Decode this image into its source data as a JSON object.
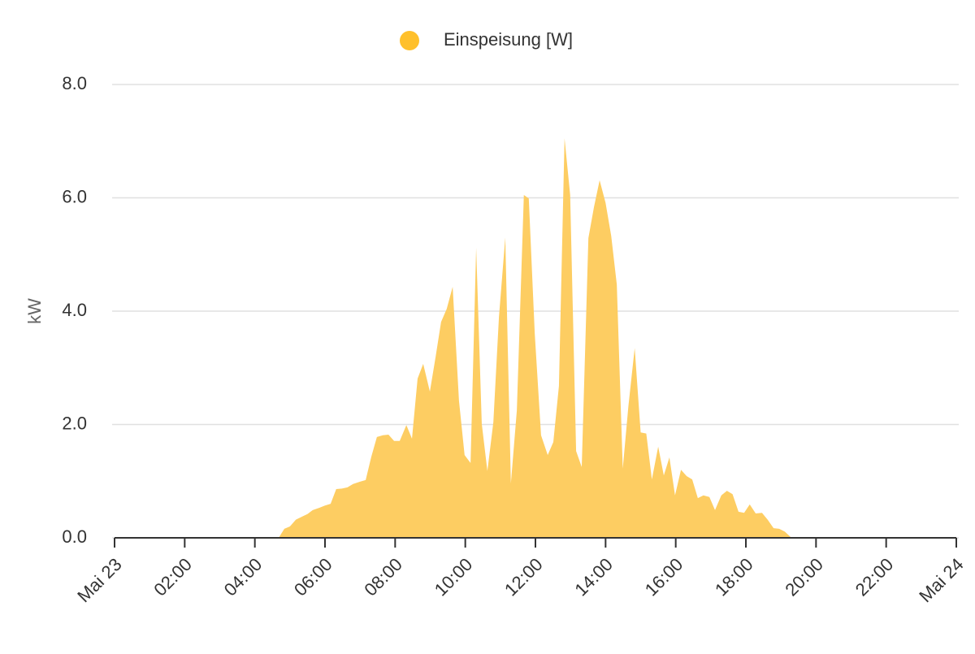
{
  "chart_data": {
    "type": "area",
    "ylabel": "kW",
    "x": [
      0,
      4.68,
      4.84,
      5.0,
      5.17,
      5.33,
      5.5,
      5.65,
      5.84,
      6.0,
      6.16,
      6.32,
      6.48,
      6.64,
      6.8,
      6.99,
      7.16,
      7.32,
      7.48,
      7.65,
      7.81,
      7.97,
      8.13,
      8.32,
      8.48,
      8.64,
      8.8,
      8.99,
      9.15,
      9.31,
      9.47,
      9.64,
      9.82,
      9.98,
      10.15,
      10.31,
      10.47,
      10.63,
      10.8,
      10.96,
      11.14,
      11.3,
      11.47,
      11.67,
      11.81,
      11.98,
      12.16,
      12.35,
      12.51,
      12.67,
      12.83,
      12.99,
      13.16,
      13.32,
      13.51,
      13.67,
      13.83,
      14.0,
      14.16,
      14.32,
      14.49,
      14.65,
      14.83,
      15.0,
      15.16,
      15.32,
      15.5,
      15.66,
      15.82,
      15.98,
      16.15,
      16.31,
      16.47,
      16.63,
      16.79,
      16.96,
      17.12,
      17.3,
      17.46,
      17.62,
      17.79,
      17.95,
      18.11,
      18.28,
      18.46,
      18.62,
      18.79,
      18.95,
      19.11,
      19.3,
      24
    ],
    "series": [
      {
        "name": "Einspeisung [W]",
        "color": "#fdcd62",
        "legend_color": "#ffc02b",
        "values": [
          0,
          0,
          0.16,
          0.2,
          0.32,
          0.37,
          0.42,
          0.49,
          0.53,
          0.57,
          0.6,
          0.86,
          0.87,
          0.89,
          0.95,
          0.99,
          1.02,
          1.43,
          1.78,
          1.81,
          1.82,
          1.71,
          1.71,
          1.99,
          1.75,
          2.81,
          3.07,
          2.58,
          3.18,
          3.81,
          4.04,
          4.43,
          2.42,
          1.46,
          1.32,
          5.12,
          2.01,
          1.18,
          2.04,
          3.9,
          5.3,
          0.96,
          2.25,
          6.05,
          5.99,
          3.61,
          1.81,
          1.46,
          1.69,
          2.68,
          7.05,
          6.05,
          1.53,
          1.25,
          5.29,
          5.84,
          6.31,
          5.91,
          5.33,
          4.47,
          1.22,
          2.32,
          3.35,
          1.86,
          1.84,
          1.03,
          1.61,
          1.1,
          1.42,
          0.75,
          1.2,
          1.09,
          1.03,
          0.7,
          0.75,
          0.72,
          0.49,
          0.75,
          0.83,
          0.77,
          0.46,
          0.44,
          0.59,
          0.43,
          0.44,
          0.32,
          0.17,
          0.16,
          0.11,
          0,
          0
        ]
      }
    ],
    "xlim": [
      0,
      24
    ],
    "xticks": [
      {
        "value": 0,
        "label": "Mai 23"
      },
      {
        "value": 2,
        "label": "02:00"
      },
      {
        "value": 4,
        "label": "04:00"
      },
      {
        "value": 6,
        "label": "06:00"
      },
      {
        "value": 8,
        "label": "08:00"
      },
      {
        "value": 10,
        "label": "10:00"
      },
      {
        "value": 12,
        "label": "12:00"
      },
      {
        "value": 14,
        "label": "14:00"
      },
      {
        "value": 16,
        "label": "16:00"
      },
      {
        "value": 18,
        "label": "18:00"
      },
      {
        "value": 20,
        "label": "20:00"
      },
      {
        "value": 22,
        "label": "22:00"
      },
      {
        "value": 24,
        "label": "Mai 24"
      }
    ],
    "ylim": [
      0,
      8
    ],
    "yticks": [
      {
        "value": 0,
        "label": "0.0"
      },
      {
        "value": 2,
        "label": "2.0"
      },
      {
        "value": 4,
        "label": "4.0"
      },
      {
        "value": 6,
        "label": "6.0"
      },
      {
        "value": 8,
        "label": "8.0"
      }
    ],
    "grid": true,
    "legend": "top"
  }
}
